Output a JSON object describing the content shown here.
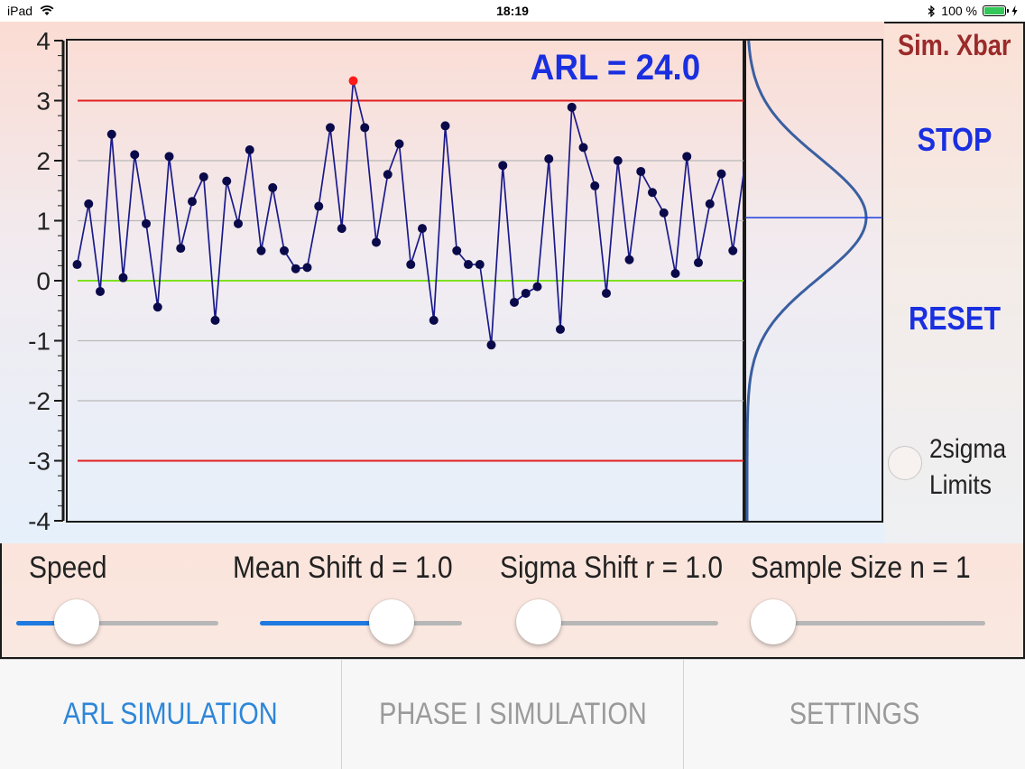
{
  "status_bar": {
    "device": "iPad",
    "time": "18:19",
    "battery": "100 %"
  },
  "app": {
    "title": "Sim. Xbar",
    "stop_label": "STOP",
    "reset_label": "RESET",
    "limits_label_line1": "2sigma",
    "limits_label_line2": "Limits",
    "limits_checked": false
  },
  "chart_data": {
    "type": "line",
    "annotation": "ARL = 24.0",
    "ylim": [
      -4,
      4
    ],
    "yticks": [
      "4",
      "3",
      "2",
      "1",
      "0",
      "-1",
      "-2",
      "-3",
      "-4"
    ],
    "grid": true,
    "ucl": 3,
    "lcl": -3,
    "center_line": 0,
    "point_color": "#0a0a4a",
    "line_color": "#1a1a8a",
    "limit_color": "#e02020",
    "center_color": "#7fe020",
    "alarm_color": "#ff1a1a",
    "values": [
      0.27,
      1.28,
      -0.18,
      2.44,
      0.05,
      2.1,
      0.95,
      -0.44,
      2.07,
      0.54,
      1.32,
      1.73,
      -0.66,
      1.66,
      0.95,
      2.18,
      0.5,
      1.55,
      0.5,
      0.2,
      0.22,
      1.24,
      2.55,
      0.87,
      3.33,
      2.55,
      0.64,
      1.77,
      2.28,
      0.27,
      0.87,
      -0.66,
      2.58,
      0.5,
      0.27,
      0.27,
      -1.07,
      1.92,
      -0.36,
      -0.21,
      -0.1,
      2.03,
      -0.81,
      2.89,
      2.22,
      1.58,
      -0.21,
      2.0,
      0.35,
      1.82,
      1.47,
      1.13,
      0.12,
      2.07,
      0.3,
      1.28,
      1.78,
      0.5,
      1.88,
      1.2
    ],
    "alarm_index": 24,
    "histogram_mean": 1.05
  },
  "controls": {
    "speed": {
      "label": "Speed",
      "value": 0.3
    },
    "mean_shift": {
      "label": "Mean Shift d = 1.0",
      "value": 0.65
    },
    "sigma_shift": {
      "label": "Sigma Shift r = 1.0",
      "value": 0.06
    },
    "sample_size": {
      "label": "Sample Size n = 1",
      "value": 0.0
    }
  },
  "tabs": [
    {
      "label": "ARL SIMULATION",
      "active": true
    },
    {
      "label": "PHASE I SIMULATION",
      "active": false
    },
    {
      "label": "SETTINGS",
      "active": false
    }
  ]
}
